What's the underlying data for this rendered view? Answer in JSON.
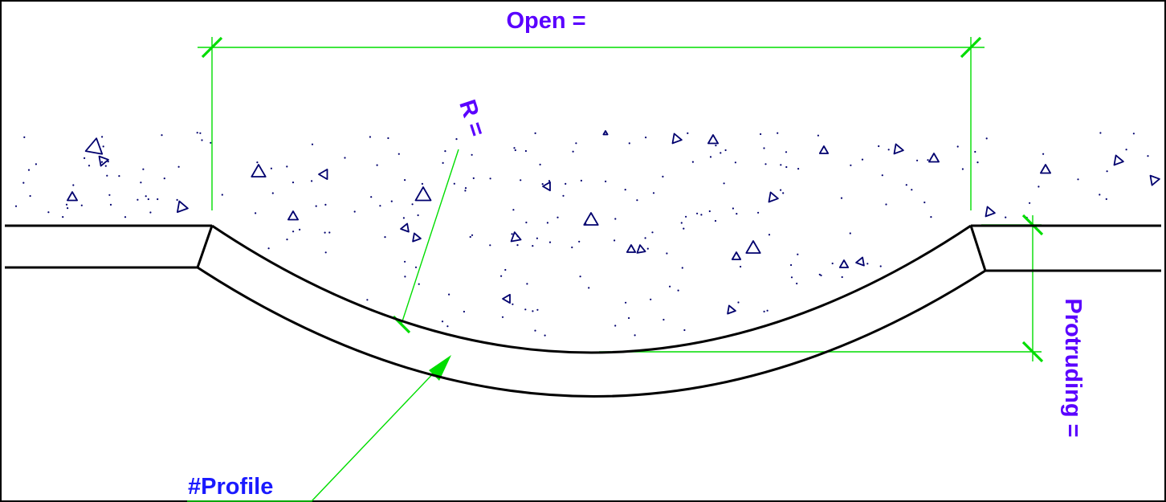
{
  "labels": {
    "open": "Open =",
    "radius": "R =",
    "protruding": "Protruding =",
    "profile": "#Profile"
  },
  "colors": {
    "label": "#5a00ff",
    "profile_label": "#1a1aff",
    "dimension": "#00dd00",
    "outline": "#000000",
    "aggregate": "#00006e",
    "background": "#ffffff"
  },
  "icons": {
    "leader_arrow": "arrowhead-icon",
    "aggregate": "triangle-icon"
  }
}
